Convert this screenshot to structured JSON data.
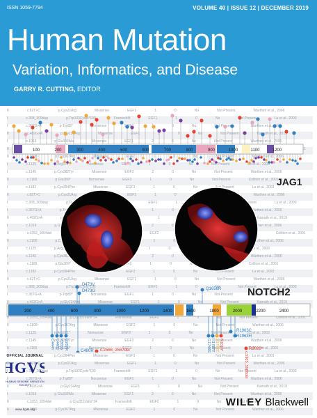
{
  "header": {
    "issn": "ISSN 1059-7794",
    "issue": "VOLUME 40 | ISSUE 12 | DECEMBER 2019",
    "title": "Human Mutation",
    "subtitle": "Variation, Informatics, and Disease",
    "editor_name": "GARRY R. CUTTING,",
    "editor_role": "EDITOR"
  },
  "colors": {
    "header_bg": "#2b9bd6",
    "domain_blue": "#2f7fc1",
    "domain_pink": "#e8a7bf",
    "domain_purple": "#6b4fa0",
    "domain_cream": "#fbf2c0",
    "domain_orange": "#f2a73b",
    "domain_green": "#9bd23a",
    "domain_navy": "#1b2f8c"
  },
  "jag1": {
    "label": "JAG1",
    "ticks": [
      "100",
      "200",
      "300",
      "400",
      "500",
      "600",
      "700",
      "800",
      "900",
      "1000",
      "1100",
      "1200"
    ]
  },
  "notch2": {
    "label": "NOTCH2",
    "ticks": [
      "200",
      "400",
      "600",
      "800",
      "1000",
      "1200",
      "1400",
      "1600",
      "1800",
      "2000",
      "2200",
      "2400"
    ],
    "mutations_top": [
      "D473V",
      "D473G",
      "Q1656R"
    ],
    "mutations_bottom": [
      "C480R",
      "c.2566_2567del",
      "R1963C",
      "R1963H",
      "R2023*"
    ],
    "mutations_vertical_left": [
      "C444Y",
      "C448Y",
      "P385S",
      "G287R"
    ],
    "mutations_vertical_right": [
      "G1746S",
      "H1787T",
      "Y1792C",
      "S1810*",
      "c.5965_5966del"
    ]
  },
  "journal": {
    "official": "OFFICIAL JOURNAL",
    "logo": "HGVS",
    "org": "HUMAN GENOME VARIATION SOCIETY",
    "url": "www.hgvs.org"
  },
  "publisher": {
    "name": "WILEY",
    "imprint": "Blackwell"
  },
  "background_rows": [
    [
      "II",
      "c.62T>C",
      "p.Cys21Arg",
      "Missense",
      "EGF1",
      "1",
      "0",
      "No",
      "Not Present",
      "Warthen et al., 2006"
    ],
    [
      "I",
      "c.308_309dup",
      "p.Trp103Cysfs*100",
      "Frameshift",
      "EGF1",
      "1",
      "0",
      "No",
      "Not Present",
      "Lu et al., 2003"
    ],
    [
      "I",
      "c.367G>A",
      "p.Trp89*",
      "Nonsense",
      "EGF1",
      "1",
      "0",
      "No",
      "Not Present",
      "Warthen et al., 2006"
    ],
    [
      "II",
      "c.402G>A",
      "p.Gly134Arg",
      "Missense",
      "EGF1",
      "1",
      "0",
      "No",
      "Not Present",
      "Kamath et al., 2019"
    ],
    [
      "I",
      "c.1019",
      "p.Glu339Ala",
      "Missense",
      "EGF1",
      "2",
      "0",
      "No",
      "Not Present",
      "Warthen et al., 2006"
    ],
    [
      "II",
      "c.1053_1054del",
      "p.Cys351Valfs*14",
      "Frameshift",
      "EGF2",
      "1",
      "0",
      "No",
      "Not Present",
      "Colliton et al., 2001"
    ],
    [
      "II",
      "c.1100",
      "p.Cys367Arg",
      "Missense",
      "EGF2",
      "1",
      "0",
      "No",
      "Not Present",
      "Warthen et al., 2006"
    ],
    [
      "I",
      "c.1125",
      "p.Arg375*",
      "Nonsense",
      "EGF3",
      "1",
      "0",
      "No",
      "Not Present",
      "Lu et al., 2003"
    ],
    [
      "I",
      "c.1145",
      "p.Cys382Tyr",
      "Missense",
      "EGF3",
      "2",
      "0",
      "No",
      "Not Present",
      "Warthen et al., 2006"
    ],
    [
      "II",
      "c.1165",
      "p.Glu389*",
      "Nonsense",
      "EGF3",
      "1",
      "0",
      "No",
      "Not Present",
      "Colliton et al., 2001"
    ],
    [
      "I",
      "c.1182",
      "p.Cys394Phe",
      "Missense",
      "EGF3",
      "1",
      "0",
      "No",
      "Not Present",
      "Lu et al., 2003"
    ]
  ]
}
